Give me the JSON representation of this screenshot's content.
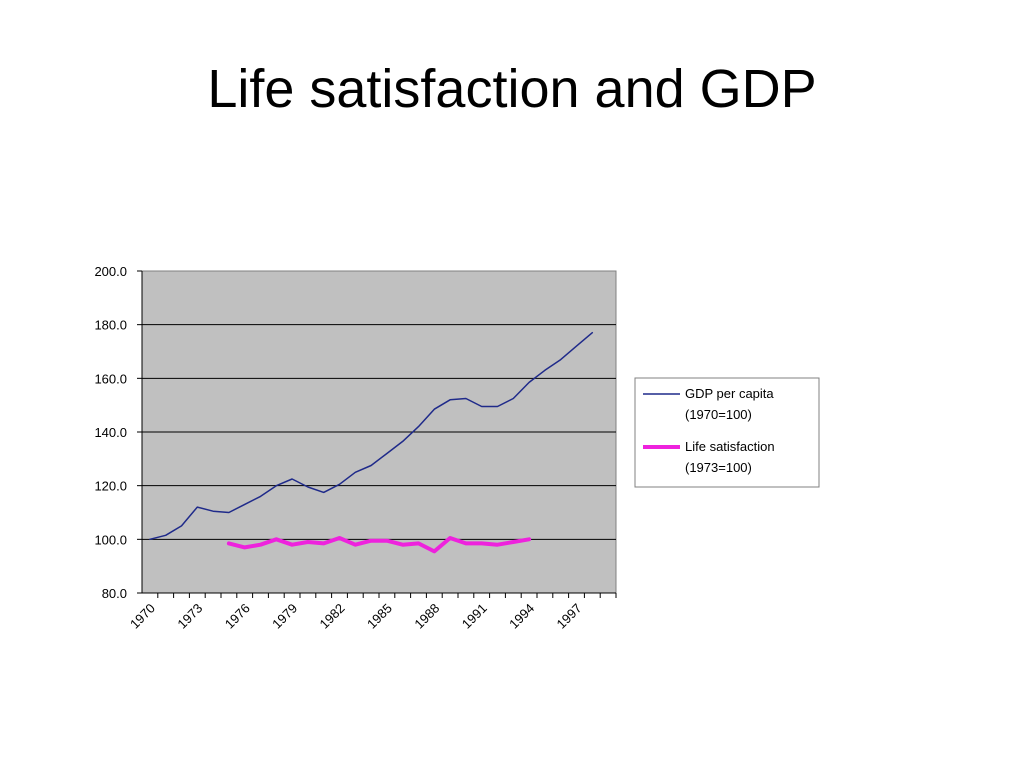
{
  "slide": {
    "title": "Life satisfaction and GDP"
  },
  "chart_data": {
    "type": "line",
    "title": "",
    "xlabel": "",
    "ylabel": "",
    "x": [
      1970,
      1971,
      1972,
      1973,
      1974,
      1975,
      1976,
      1977,
      1978,
      1979,
      1980,
      1981,
      1982,
      1983,
      1984,
      1985,
      1986,
      1987,
      1988,
      1989,
      1990,
      1991,
      1992,
      1993,
      1994,
      1995,
      1996,
      1997,
      1998,
      1999
    ],
    "x_tick_labels": [
      "1970",
      "1973",
      "1976",
      "1979",
      "1982",
      "1985",
      "1988",
      "1991",
      "1994",
      "1997"
    ],
    "x_tick_values": [
      1970,
      1973,
      1976,
      1979,
      1982,
      1985,
      1988,
      1991,
      1994,
      1997
    ],
    "y_tick_labels": [
      "200.0",
      "180.0",
      "160.0",
      "140.0",
      "120.0",
      "100.0",
      "80.0"
    ],
    "y_tick_values": [
      200,
      180,
      160,
      140,
      120,
      100,
      80
    ],
    "ylim": [
      80,
      200
    ],
    "xlim": [
      1970,
      1999
    ],
    "grid": "horizontal",
    "legend_position": "right",
    "plot_background": "#c0c0c0",
    "series": [
      {
        "name_lines": [
          "GDP per capita",
          "(1970=100)"
        ],
        "color": "#1f2a8a",
        "values": [
          100,
          101.5,
          105,
          112,
          110.5,
          110,
          113,
          116,
          120,
          122.5,
          119.5,
          117.5,
          120.5,
          125,
          127.5,
          132,
          136.5,
          142,
          148.5,
          152,
          152.5,
          149.5,
          149.5,
          152.5,
          158.5,
          163,
          167,
          172,
          177,
          null
        ]
      },
      {
        "name_lines": [
          "Life satisfaction",
          "(1973=100)"
        ],
        "color": "#ee22dd",
        "values": [
          null,
          null,
          null,
          null,
          null,
          98.5,
          97,
          98,
          100,
          98,
          99,
          98.5,
          100.5,
          98,
          99.5,
          99.5,
          98,
          98.5,
          95.5,
          100.5,
          98.5,
          98.5,
          98,
          99,
          100,
          null,
          null,
          null,
          null,
          null
        ]
      }
    ]
  }
}
